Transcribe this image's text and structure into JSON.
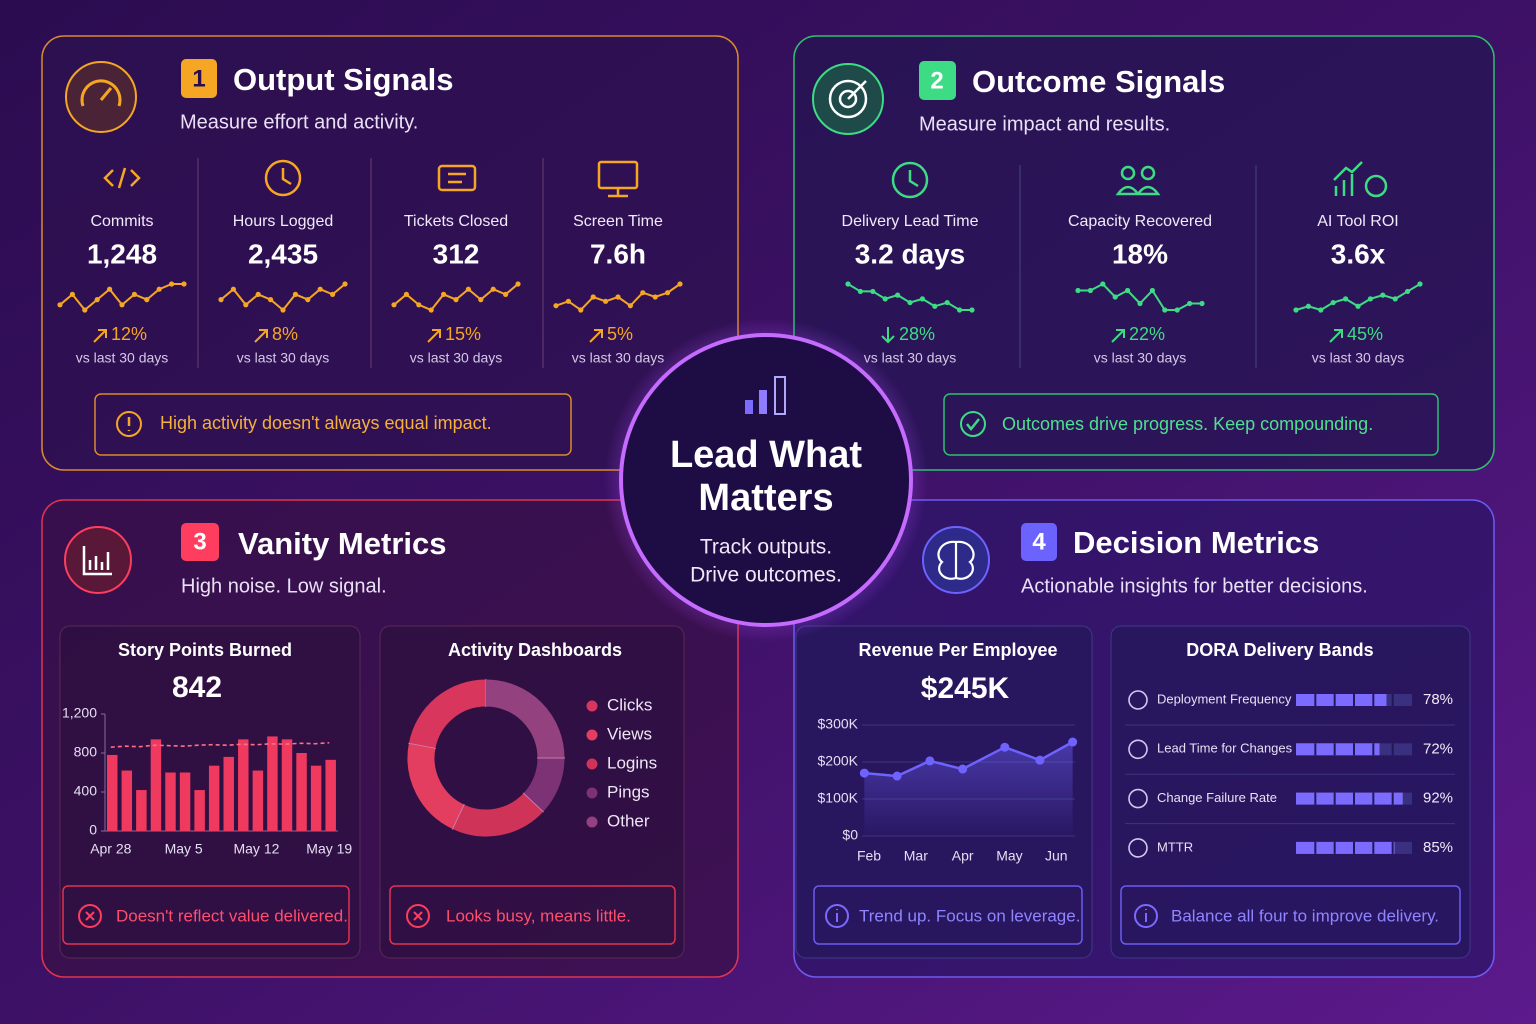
{
  "center": {
    "title": [
      "Lead What",
      "Matters"
    ],
    "subtitle": [
      "Track outputs.",
      "Drive outcomes."
    ]
  },
  "output_signals": {
    "number": 1,
    "title": "Output Signals",
    "subtitle": "Measure effort and activity.",
    "color": "#f5a623",
    "metrics": [
      {
        "label": "Commits",
        "value": "1,248",
        "direction": "up",
        "change": "12%",
        "period": "vs last 30 days",
        "sparkline": [
          4,
          6,
          3,
          5,
          7,
          4,
          6,
          5,
          7,
          8,
          8
        ]
      },
      {
        "label": "Hours Logged",
        "value": "2,435",
        "direction": "up",
        "change": "8%",
        "period": "vs last 30 days",
        "sparkline": [
          5,
          7,
          4,
          6,
          5,
          3,
          6,
          5,
          7,
          6,
          8
        ]
      },
      {
        "label": "Tickets Closed",
        "value": "312",
        "direction": "up",
        "change": "15%",
        "period": "vs last 30 days",
        "sparkline": [
          4,
          6,
          4,
          3,
          6,
          5,
          7,
          5,
          7,
          6,
          8
        ]
      },
      {
        "label": "Screen Time",
        "value": "7.6h",
        "direction": "up",
        "change": "5%",
        "period": "vs last 30 days",
        "sparkline": [
          4,
          5,
          3,
          6,
          5,
          6,
          4,
          7,
          6,
          7,
          9
        ]
      }
    ],
    "note": "High activity doesn't always equal impact."
  },
  "outcome_signals": {
    "number": 2,
    "title": "Outcome Signals",
    "subtitle": "Measure impact and results.",
    "color": "#3ddc84",
    "metrics": [
      {
        "label": "Delivery Lead Time",
        "value": "3.2 days",
        "direction": "down",
        "change": "28%",
        "period": "vs last 30 days",
        "sparkline": [
          9,
          7,
          7,
          5,
          6,
          4,
          5,
          3,
          4,
          2,
          2
        ]
      },
      {
        "label": "Capacity Recovered",
        "value": "18%",
        "direction": "up",
        "change": "22%",
        "period": "vs last 30 days",
        "sparkline": [
          6,
          6,
          7,
          5,
          6,
          4,
          6,
          3,
          3,
          4,
          4
        ]
      },
      {
        "label": "AI Tool ROI",
        "value": "3.6x",
        "direction": "up",
        "change": "45%",
        "period": "vs last 30 days",
        "sparkline": [
          2,
          3,
          2,
          4,
          5,
          3,
          5,
          6,
          5,
          7,
          9
        ]
      }
    ],
    "note": "Outcomes drive progress. Keep compounding."
  },
  "vanity_metrics": {
    "number": 3,
    "title": "Vanity Metrics",
    "subtitle": "High noise. Low signal.",
    "color": "#ff3d5e",
    "story_points": {
      "type": "bar",
      "title": "Story Points Burned",
      "headline": 842,
      "categories": [
        "Apr 28",
        null,
        null,
        null,
        null,
        "May 5",
        null,
        null,
        null,
        null,
        "May 12",
        null,
        null,
        null,
        null,
        "May 19"
      ],
      "values": [
        780,
        620,
        420,
        940,
        600,
        600,
        420,
        670,
        760,
        940,
        620,
        970,
        940,
        800,
        670,
        730
      ],
      "trend_values": [
        860,
        870,
        865,
        880,
        875,
        870,
        880,
        885,
        880,
        890,
        885,
        895,
        890,
        900,
        895,
        905
      ],
      "ylim": [
        0,
        1200
      ],
      "yticks": [
        0,
        400,
        800,
        {
          "value": 1200,
          "label": "1,200"
        }
      ],
      "color": "#f0395e",
      "note": "Doesn't reflect value delivered."
    },
    "activity": {
      "type": "pie",
      "title": "Activity Dashboards",
      "categories": [
        "Clicks",
        "Views",
        "Logins",
        "Pings",
        "Other"
      ],
      "values": [
        22,
        21,
        20,
        12,
        25
      ],
      "colors": [
        "#d8365c",
        "#e33e5f",
        "#cf3358",
        "#7d3275",
        "#93417f"
      ],
      "note": "Looks busy, means little."
    }
  },
  "decision_metrics": {
    "number": 4,
    "title": "Decision Metrics",
    "subtitle": "Actionable insights for better decisions.",
    "color": "#6c63ff",
    "revenue": {
      "type": "line",
      "title": "Revenue Per Employee",
      "headline": "$245K",
      "x": [
        1.9,
        2.6,
        3.3,
        4.0,
        4.9,
        5.65,
        6.35
      ],
      "values": [
        170000,
        162000,
        203000,
        181000,
        240000,
        205000,
        254000
      ],
      "xlim": [
        1.85,
        6.4
      ],
      "xticks": [
        {
          "value": 2,
          "label": "Feb"
        },
        {
          "value": 3,
          "label": "Mar"
        },
        {
          "value": 4,
          "label": "Apr"
        },
        {
          "value": 5,
          "label": "May"
        },
        {
          "value": 6,
          "label": "Jun"
        }
      ],
      "ylim": [
        0,
        300000
      ],
      "yticks": [
        {
          "value": 0,
          "label": "$0"
        },
        {
          "value": 100000,
          "label": "$100K"
        },
        {
          "value": 200000,
          "label": "$200K"
        },
        {
          "value": 300000,
          "label": "$300K"
        }
      ],
      "color": "#6f63ff",
      "note": "Trend up. Focus on leverage."
    },
    "dora": {
      "type": "bar",
      "title": "DORA Delivery Bands",
      "categories": [
        "Deployment Frequency",
        "Lead Time for Changes",
        "Change Failure Rate",
        "MTTR"
      ],
      "values": [
        78,
        72,
        92,
        85
      ],
      "value_labels": [
        "78%",
        "72%",
        "92%",
        "85%"
      ],
      "xlim": [
        0,
        100
      ],
      "color": "#7b6cff",
      "note": "Balance all four to improve delivery."
    }
  }
}
